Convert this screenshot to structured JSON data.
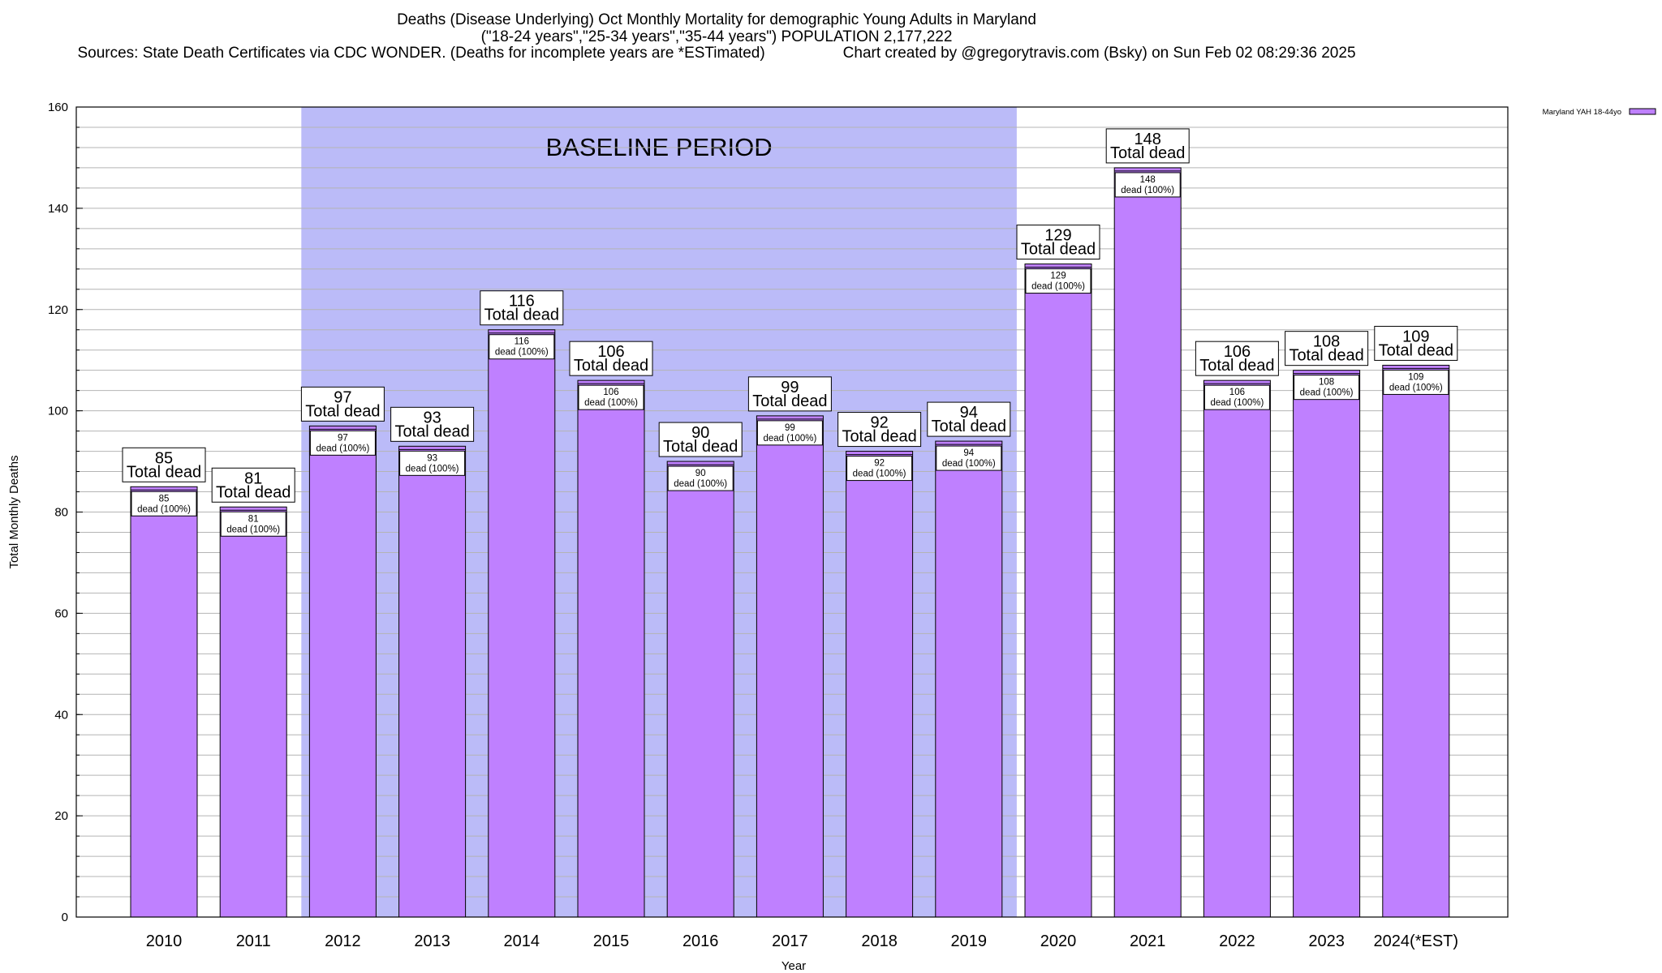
{
  "chart_data": {
    "type": "bar",
    "title": "Deaths (Disease Underlying) Oct Monthly Mortality for demographic Young Adults in Maryland",
    "subtitle": "(\"18-24 years\",\"25-34 years\",\"35-44 years\") POPULATION 2,177,222",
    "sources": "Sources: State Death Certificates via CDC WONDER. (Deaths for incomplete years are *ESTimated)",
    "credit": "Chart created by @gregorytravis.com (Bsky) on Sun Feb 02 08:29:36 2025",
    "xlabel": "Year",
    "ylabel": "Total Monthly Deaths",
    "ylim": [
      0,
      160
    ],
    "yticks": [
      0,
      20,
      40,
      60,
      80,
      100,
      120,
      140,
      160
    ],
    "y_minor_step": 4,
    "grid": true,
    "legend_position": "top-right",
    "categories": [
      "2010",
      "2011",
      "2012",
      "2013",
      "2014",
      "2015",
      "2016",
      "2017",
      "2018",
      "2019",
      "2020",
      "2021",
      "2022",
      "2023",
      "2024(*EST)"
    ],
    "series": [
      {
        "name": "Maryland YAH 18-44yo",
        "color": "#bf80ff",
        "values": [
          85,
          81,
          97,
          93,
          116,
          106,
          90,
          99,
          92,
          94,
          129,
          148,
          106,
          108,
          109
        ]
      }
    ],
    "total_label_suffix": "Total dead",
    "inner_label_suffix": "dead (100%)",
    "baseline": {
      "label": "BASELINE PERIOD",
      "from": "2012",
      "to": "2019",
      "color": "#bbbbf8"
    }
  }
}
